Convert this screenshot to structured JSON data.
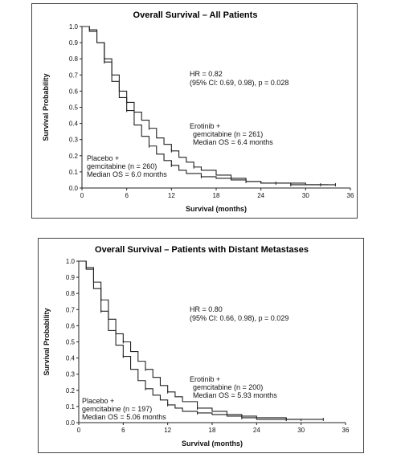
{
  "chart_data": [
    {
      "type": "line",
      "title": "Overall Survival – All Patients",
      "xlabel": "Survival (months)",
      "ylabel": "Survival Probability",
      "xlim": [
        0,
        36
      ],
      "ylim": [
        0,
        1.0
      ],
      "xticks": [
        0,
        6,
        12,
        18,
        24,
        30,
        36
      ],
      "yticks": [
        0.0,
        0.1,
        0.2,
        0.3,
        0.4,
        0.5,
        0.6,
        0.7,
        0.8,
        0.9,
        1.0
      ],
      "grid": false,
      "annotations": {
        "hr": "HR = 0.82",
        "ci": "(95% CI: 0.69, 0.98), p = 0.028",
        "erlotinib": [
          "Erotinib +",
          "gemcitabine (n = 261)",
          "Median OS = 6.4 months"
        ],
        "placebo": [
          "Placebo +",
          "gemcitabine (n = 260)",
          "Median OS = 6.0 months"
        ]
      },
      "series": [
        {
          "name": "Erotinib + gemcitabine",
          "color": "#222222",
          "x": [
            0,
            1,
            2,
            3,
            4,
            5,
            6,
            7,
            8,
            9,
            10,
            11,
            12,
            13,
            14,
            15,
            16,
            18,
            20,
            22,
            24,
            26,
            28,
            30,
            32,
            33
          ],
          "y": [
            1.0,
            0.97,
            0.9,
            0.8,
            0.7,
            0.6,
            0.53,
            0.47,
            0.42,
            0.37,
            0.31,
            0.27,
            0.23,
            0.19,
            0.16,
            0.13,
            0.11,
            0.08,
            0.06,
            0.04,
            0.03,
            0.03,
            0.03,
            0.02,
            0.02,
            0.02
          ]
        },
        {
          "name": "Placebo + gemcitabine",
          "color": "#222222",
          "x": [
            0,
            1,
            2,
            3,
            4,
            5,
            6,
            7,
            8,
            9,
            10,
            11,
            12,
            13,
            14,
            16,
            18,
            20,
            22,
            24,
            26,
            28,
            30,
            32,
            34
          ],
          "y": [
            1.0,
            0.98,
            0.9,
            0.78,
            0.66,
            0.56,
            0.48,
            0.39,
            0.32,
            0.26,
            0.21,
            0.17,
            0.14,
            0.11,
            0.09,
            0.07,
            0.06,
            0.05,
            0.04,
            0.03,
            0.03,
            0.02,
            0.02,
            0.02,
            0.02
          ]
        }
      ]
    },
    {
      "type": "line",
      "title": "Overall Survival – Patients with Distant Metastases",
      "xlabel": "Survival (months)",
      "ylabel": "Survival Probability",
      "xlim": [
        0,
        36
      ],
      "ylim": [
        0,
        1.0
      ],
      "xticks": [
        0,
        6,
        12,
        18,
        24,
        30,
        36
      ],
      "yticks": [
        0.0,
        0.1,
        0.2,
        0.3,
        0.4,
        0.5,
        0.6,
        0.7,
        0.8,
        0.9,
        1.0
      ],
      "grid": false,
      "annotations": {
        "hr": "HR = 0.80",
        "ci": "(95% CI: 0.66, 0.98), p = 0.029",
        "erlotinib": [
          "Erotinib +",
          "gemcitabine (n = 200)",
          "Median OS = 5.93 months"
        ],
        "placebo": [
          "Placebo +",
          "gemcitabine (n = 197)",
          "Median OS = 5.06 months"
        ]
      },
      "series": [
        {
          "name": "Erotinib + gemcitabine",
          "color": "#222222",
          "x": [
            0,
            1,
            2,
            3,
            4,
            5,
            6,
            7,
            8,
            9,
            10,
            11,
            12,
            13,
            14,
            16,
            18,
            20,
            22,
            24,
            26,
            28,
            30,
            32,
            33
          ],
          "y": [
            1.0,
            0.96,
            0.87,
            0.76,
            0.64,
            0.55,
            0.5,
            0.44,
            0.38,
            0.33,
            0.28,
            0.23,
            0.19,
            0.16,
            0.13,
            0.09,
            0.07,
            0.05,
            0.04,
            0.03,
            0.03,
            0.02,
            0.02,
            0.02,
            0.02
          ]
        },
        {
          "name": "Placebo + gemcitabine",
          "color": "#222222",
          "x": [
            0,
            1,
            2,
            3,
            4,
            5,
            6,
            7,
            8,
            9,
            10,
            11,
            12,
            13,
            14,
            16,
            18,
            20,
            22,
            24,
            26,
            28,
            30
          ],
          "y": [
            1.0,
            0.95,
            0.83,
            0.69,
            0.57,
            0.48,
            0.41,
            0.33,
            0.26,
            0.21,
            0.17,
            0.14,
            0.11,
            0.09,
            0.07,
            0.06,
            0.05,
            0.04,
            0.03,
            0.02,
            0.02,
            0.02,
            0.01
          ]
        }
      ]
    }
  ]
}
